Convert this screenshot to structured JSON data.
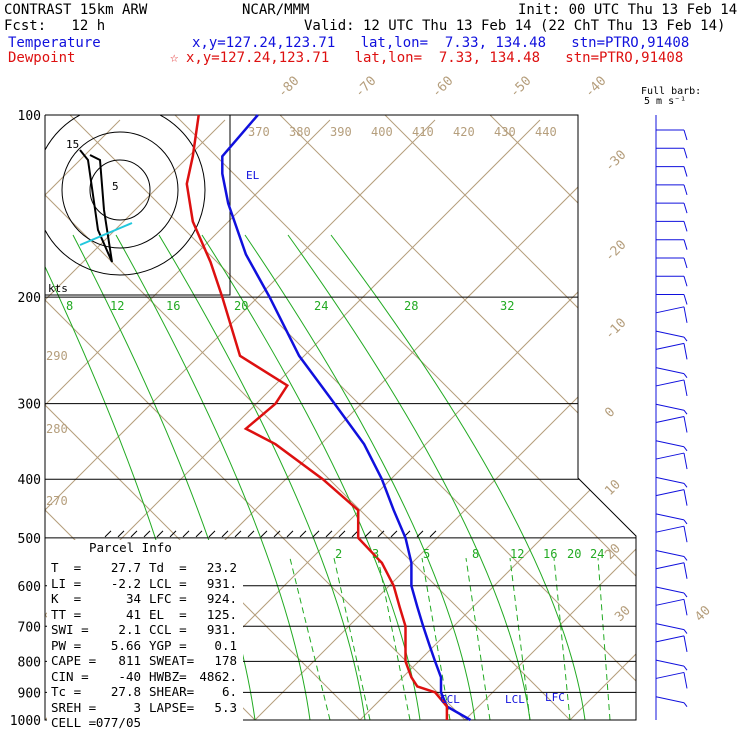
{
  "header": {
    "model": "CONTRAST 15km ARW",
    "fcst": "Fcst:   12 h",
    "center": "NCAR/MMM",
    "init": "Init: 00 UTC Thu 13 Feb 14",
    "valid": "Valid: 12 UTC Thu 13 Feb 14 (22 ChT Thu 13 Feb 14)",
    "temp_label": "Temperature",
    "temp_loc": "x,y=127.24,123.71   lat,lon=  7.33, 134.48   stn=PTRO,91408",
    "dew_label": "Dewpoint",
    "dew_loc": "x,y=127.24,123.71   lat,lon=  7.33, 134.48   stn=PTRO,91408",
    "dew_marker": "☆",
    "barb_title": "Full barb:",
    "barb_unit": "5 m s⁻¹",
    "hodo_unit": "kts"
  },
  "colors": {
    "temperature": "#1010dd",
    "dewpoint": "#dd1010",
    "isobar": "#000000",
    "isotherm": "#b59e7c",
    "mixing_ratio": "#22aa22",
    "moist_adiabat": "#22aa22",
    "dry_adiabat": "#b59e7c"
  },
  "parcel": {
    "title": "Parcel Info",
    "rows": [
      [
        "T  =",
        "27.7",
        "Td  =",
        "23.2"
      ],
      [
        "LI =",
        "-2.2",
        "LCL =",
        "931."
      ],
      [
        "K  =",
        "34",
        "LFC =",
        "924."
      ],
      [
        "TT =",
        "41",
        "EL  =",
        "125."
      ],
      [
        "SWI =",
        "2.1",
        "CCL =",
        "931."
      ],
      [
        "PW =",
        "5.66",
        "YGP =",
        "0.1"
      ],
      [
        "CAPE =",
        "811",
        "SWEAT=",
        "178"
      ],
      [
        "CIN =",
        "-40",
        "HWBZ=",
        "4862."
      ],
      [
        "Tc =",
        "27.8",
        "SHEAR=",
        "6."
      ],
      [
        "SREH =",
        "3",
        "LAPSE=",
        "5.3"
      ],
      [
        "CELL =",
        "077/05",
        "",
        ""
      ]
    ]
  },
  "chart_data": {
    "type": "line",
    "title": "",
    "xlabel": "",
    "ylabel": "",
    "pressure_levels": [
      100,
      200,
      300,
      400,
      500,
      600,
      700,
      800,
      900,
      1000
    ],
    "series": [
      {
        "name": "Temperature",
        "pressure_hpa": [
          100,
          117,
          125,
          140,
          170,
          200,
          250,
          300,
          350,
          400,
          450,
          500,
          550,
          600,
          650,
          700,
          750,
          800,
          850,
          900,
          950,
          1000
        ],
        "x": [
          0.36,
          0.3,
          0.3,
          0.31,
          0.34,
          0.38,
          0.43,
          0.49,
          0.54,
          0.57,
          0.59,
          0.61,
          0.62,
          0.62,
          0.63,
          0.64,
          0.65,
          0.66,
          0.67,
          0.67,
          0.68,
          0.72
        ]
      },
      {
        "name": "Dewpoint",
        "pressure_hpa": [
          100,
          117,
          130,
          150,
          175,
          200,
          250,
          280,
          300,
          330,
          350,
          400,
          450,
          500,
          550,
          600,
          650,
          700,
          750,
          800,
          850,
          880,
          900,
          950,
          1000
        ],
        "x": [
          0.26,
          0.25,
          0.24,
          0.25,
          0.28,
          0.3,
          0.33,
          0.41,
          0.39,
          0.34,
          0.39,
          0.47,
          0.53,
          0.53,
          0.57,
          0.59,
          0.6,
          0.61,
          0.61,
          0.61,
          0.62,
          0.63,
          0.66,
          0.68,
          0.68
        ]
      }
    ],
    "parcel_levels": [
      "CCL",
      "LCL",
      "LFC",
      "EL"
    ],
    "isotherm_labels": [
      "-80",
      "-70",
      "-60",
      "-50",
      "-40",
      "-30",
      "-20",
      "-10",
      "0",
      "10",
      "20",
      "30",
      "40"
    ],
    "theta_labels": [
      "370",
      "380",
      "390",
      "400",
      "410",
      "420",
      "430",
      "440"
    ],
    "dry_adiabat_labels": [
      "290",
      "280",
      "270"
    ],
    "mixing_ratio_labels_top": [
      "8",
      "12",
      "16",
      "20",
      "24",
      "28",
      "32"
    ],
    "mixing_ratio_labels_mid": [
      "2",
      "3",
      "5",
      "8",
      "12",
      "16",
      "20",
      "24"
    ]
  },
  "wind_barbs": {
    "title": "Full barb: 5 m s⁻¹",
    "count": 32
  },
  "hodograph": {
    "rings": [
      "5",
      "15"
    ],
    "unit": "kts"
  }
}
